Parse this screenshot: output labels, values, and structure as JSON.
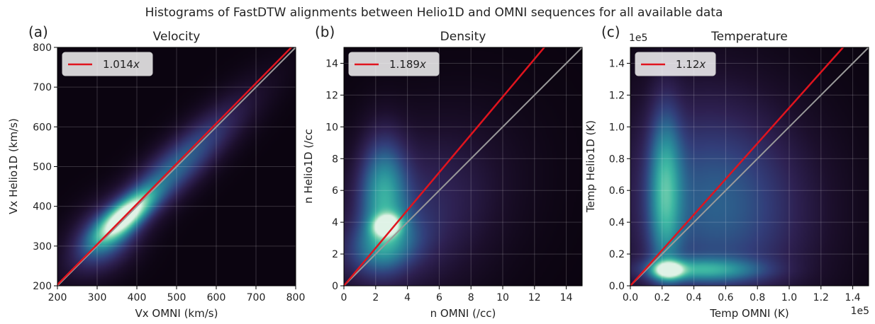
{
  "figure": {
    "suptitle": "Histograms of FastDTW alignments between Helio1D and OMNI sequences for all available data"
  },
  "colors": {
    "fit_line": "#e0141e",
    "identity_line": "#9a9a9a",
    "grid": "#ffffff",
    "colormap": [
      "#0b0410",
      "#1c0f2c",
      "#2e2152",
      "#323e7a",
      "#2b6790",
      "#2a8f9b",
      "#3eb8a3",
      "#8ad7b2",
      "#dff2e6"
    ]
  },
  "chart_data": [
    {
      "type": "heatmap",
      "panel_label": "(a)",
      "title": "Velocity",
      "xlabel": "Vx OMNI (km/s)",
      "ylabel": "Vx Helio1D (km/s)",
      "xlim": [
        200,
        800
      ],
      "ylim": [
        200,
        800
      ],
      "xticks": [
        "200",
        "300",
        "400",
        "500",
        "600",
        "700",
        "800"
      ],
      "yticks": [
        "200",
        "300",
        "400",
        "500",
        "600",
        "700",
        "800"
      ],
      "xtick_values": [
        200,
        300,
        400,
        500,
        600,
        700,
        800
      ],
      "ytick_values": [
        200,
        300,
        400,
        500,
        600,
        700,
        800
      ],
      "offset_text_x": "",
      "offset_text_y": "",
      "legend": {
        "position": "upper-left",
        "label": "1.014",
        "italic_suffix": "x"
      },
      "fit_line": {
        "slope": 1.014,
        "intercept": 0
      },
      "identity_line": {
        "slope": 1,
        "intercept": 0
      },
      "grid": true,
      "density_blobs": [
        {
          "cx": 370,
          "cy": 375,
          "sx": 45,
          "sy": 40,
          "rho": 0.75,
          "w": 1.0
        },
        {
          "cx": 480,
          "cy": 480,
          "sx": 120,
          "sy": 115,
          "rho": 0.9,
          "w": 0.45
        },
        {
          "cx": 320,
          "cy": 320,
          "sx": 55,
          "sy": 55,
          "rho": 0.3,
          "w": 0.35
        }
      ]
    },
    {
      "type": "heatmap",
      "panel_label": "(b)",
      "title": "Density",
      "xlabel": "n OMNI (/cc)",
      "ylabel": "n Helio1D (/cc",
      "xlim": [
        0,
        15
      ],
      "ylim": [
        0,
        15
      ],
      "xticks": [
        "0",
        "2",
        "4",
        "6",
        "8",
        "10",
        "12",
        "14"
      ],
      "yticks": [
        "0",
        "2",
        "4",
        "6",
        "8",
        "10",
        "12",
        "14"
      ],
      "xtick_values": [
        0,
        2,
        4,
        6,
        8,
        10,
        12,
        14
      ],
      "ytick_values": [
        0,
        2,
        4,
        6,
        8,
        10,
        12,
        14
      ],
      "offset_text_x": "",
      "offset_text_y": "",
      "legend": {
        "position": "upper-left",
        "label": "1.189",
        "italic_suffix": "x"
      },
      "fit_line": {
        "slope": 1.189,
        "intercept": 0
      },
      "identity_line": {
        "slope": 1,
        "intercept": 0
      },
      "grid": true,
      "density_blobs": [
        {
          "cx": 2.7,
          "cy": 3.8,
          "sx": 0.55,
          "sy": 0.45,
          "rho": 0.1,
          "w": 1.0
        },
        {
          "cx": 2.5,
          "cy": 5.8,
          "sx": 1.0,
          "sy": 2.4,
          "rho": 0.0,
          "w": 0.55
        },
        {
          "cx": 4.5,
          "cy": 4.5,
          "sx": 3.5,
          "sy": 3.5,
          "rho": 0.3,
          "w": 0.22
        },
        {
          "cx": 2.5,
          "cy": 2.5,
          "sx": 1.6,
          "sy": 1.2,
          "rho": 0.2,
          "w": 0.35
        }
      ]
    },
    {
      "type": "heatmap",
      "panel_label": "(c)",
      "title": "Temperature",
      "xlabel": "Temp OMNI (K)",
      "ylabel": "Temp Helio1D (K)",
      "xlim": [
        0,
        1.5
      ],
      "ylim": [
        0,
        1.5
      ],
      "xticks": [
        "0.0",
        "0.2",
        "0.4",
        "0.6",
        "0.8",
        "1.0",
        "1.2",
        "1.4"
      ],
      "yticks": [
        "0.0",
        "0.2",
        "0.4",
        "0.6",
        "0.8",
        "1.0",
        "1.2",
        "1.4"
      ],
      "xtick_values": [
        0,
        0.2,
        0.4,
        0.6,
        0.8,
        1.0,
        1.2,
        1.4
      ],
      "ytick_values": [
        0,
        0.2,
        0.4,
        0.6,
        0.8,
        1.0,
        1.2,
        1.4
      ],
      "offset_text_x": "1e5",
      "offset_text_y": "1e5",
      "legend": {
        "position": "upper-left",
        "label": "1.12",
        "italic_suffix": "x"
      },
      "fit_line": {
        "slope": 1.12,
        "intercept": 0
      },
      "identity_line": {
        "slope": 1,
        "intercept": 0
      },
      "grid": true,
      "density_blobs": [
        {
          "cx": 0.24,
          "cy": 0.1,
          "sx": 0.06,
          "sy": 0.035,
          "rho": 0.0,
          "w": 1.0
        },
        {
          "cx": 0.45,
          "cy": 0.1,
          "sx": 0.25,
          "sy": 0.05,
          "rho": 0.0,
          "w": 0.5
        },
        {
          "cx": 0.22,
          "cy": 0.6,
          "sx": 0.07,
          "sy": 0.35,
          "rho": 0.0,
          "w": 0.55
        },
        {
          "cx": 0.45,
          "cy": 0.55,
          "sx": 0.35,
          "sy": 0.45,
          "rho": 0.0,
          "w": 0.3
        },
        {
          "cx": 0.75,
          "cy": 0.45,
          "sx": 0.35,
          "sy": 0.4,
          "rho": 0.0,
          "w": 0.15
        }
      ]
    }
  ]
}
